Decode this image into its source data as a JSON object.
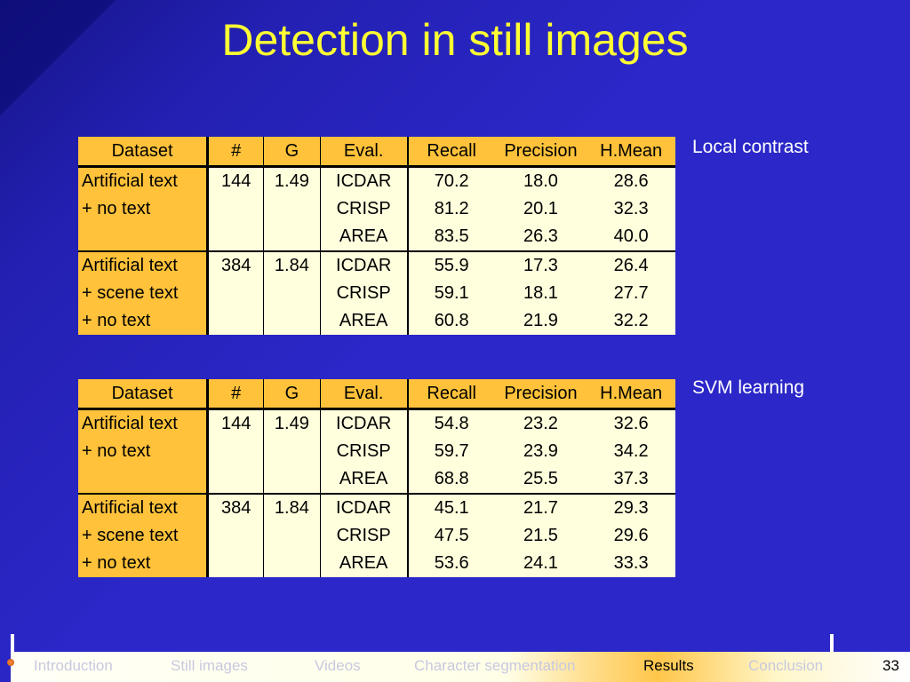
{
  "title": "Detection in still images",
  "headers": [
    "Dataset",
    "#",
    "G",
    "Eval.",
    "Recall",
    "Precision",
    "H.Mean"
  ],
  "tables": [
    {
      "label": "Local contrast",
      "rows": [
        [
          "Artificial text",
          "144",
          "1.49",
          "ICDAR",
          "70.2",
          "18.0",
          "28.6"
        ],
        [
          "+ no text",
          "",
          "",
          "CRISP",
          "81.2",
          "20.1",
          "32.3"
        ],
        [
          "",
          "",
          "",
          "AREA",
          "83.5",
          "26.3",
          "40.0"
        ],
        [
          "Artificial text",
          "384",
          "1.84",
          "ICDAR",
          "55.9",
          "17.3",
          "26.4"
        ],
        [
          "+ scene text",
          "",
          "",
          "CRISP",
          "59.1",
          "18.1",
          "27.7"
        ],
        [
          "+ no text",
          "",
          "",
          "AREA",
          "60.8",
          "21.9",
          "32.2"
        ]
      ]
    },
    {
      "label": "SVM learning",
      "rows": [
        [
          "Artificial text",
          "144",
          "1.49",
          "ICDAR",
          "54.8",
          "23.2",
          "32.6"
        ],
        [
          "+ no text",
          "",
          "",
          "CRISP",
          "59.7",
          "23.9",
          "34.2"
        ],
        [
          "",
          "",
          "",
          "AREA",
          "68.8",
          "25.5",
          "37.3"
        ],
        [
          "Artificial text",
          "384",
          "1.84",
          "ICDAR",
          "45.1",
          "21.7",
          "29.3"
        ],
        [
          "+ scene text",
          "",
          "",
          "CRISP",
          "47.5",
          "21.5",
          "29.6"
        ],
        [
          "+ no text",
          "",
          "",
          "AREA",
          "53.6",
          "24.1",
          "33.3"
        ]
      ]
    }
  ],
  "footer": {
    "nav": [
      "Introduction",
      "Still images",
      "Videos",
      "Character segmentation",
      "Results",
      "Conclusion"
    ],
    "active": "Results",
    "page_number": "33"
  },
  "colors": {
    "title": "#ffff33",
    "table_header": "#ffc23a",
    "table_body": "#fffedd",
    "background": "#2b27c8"
  }
}
